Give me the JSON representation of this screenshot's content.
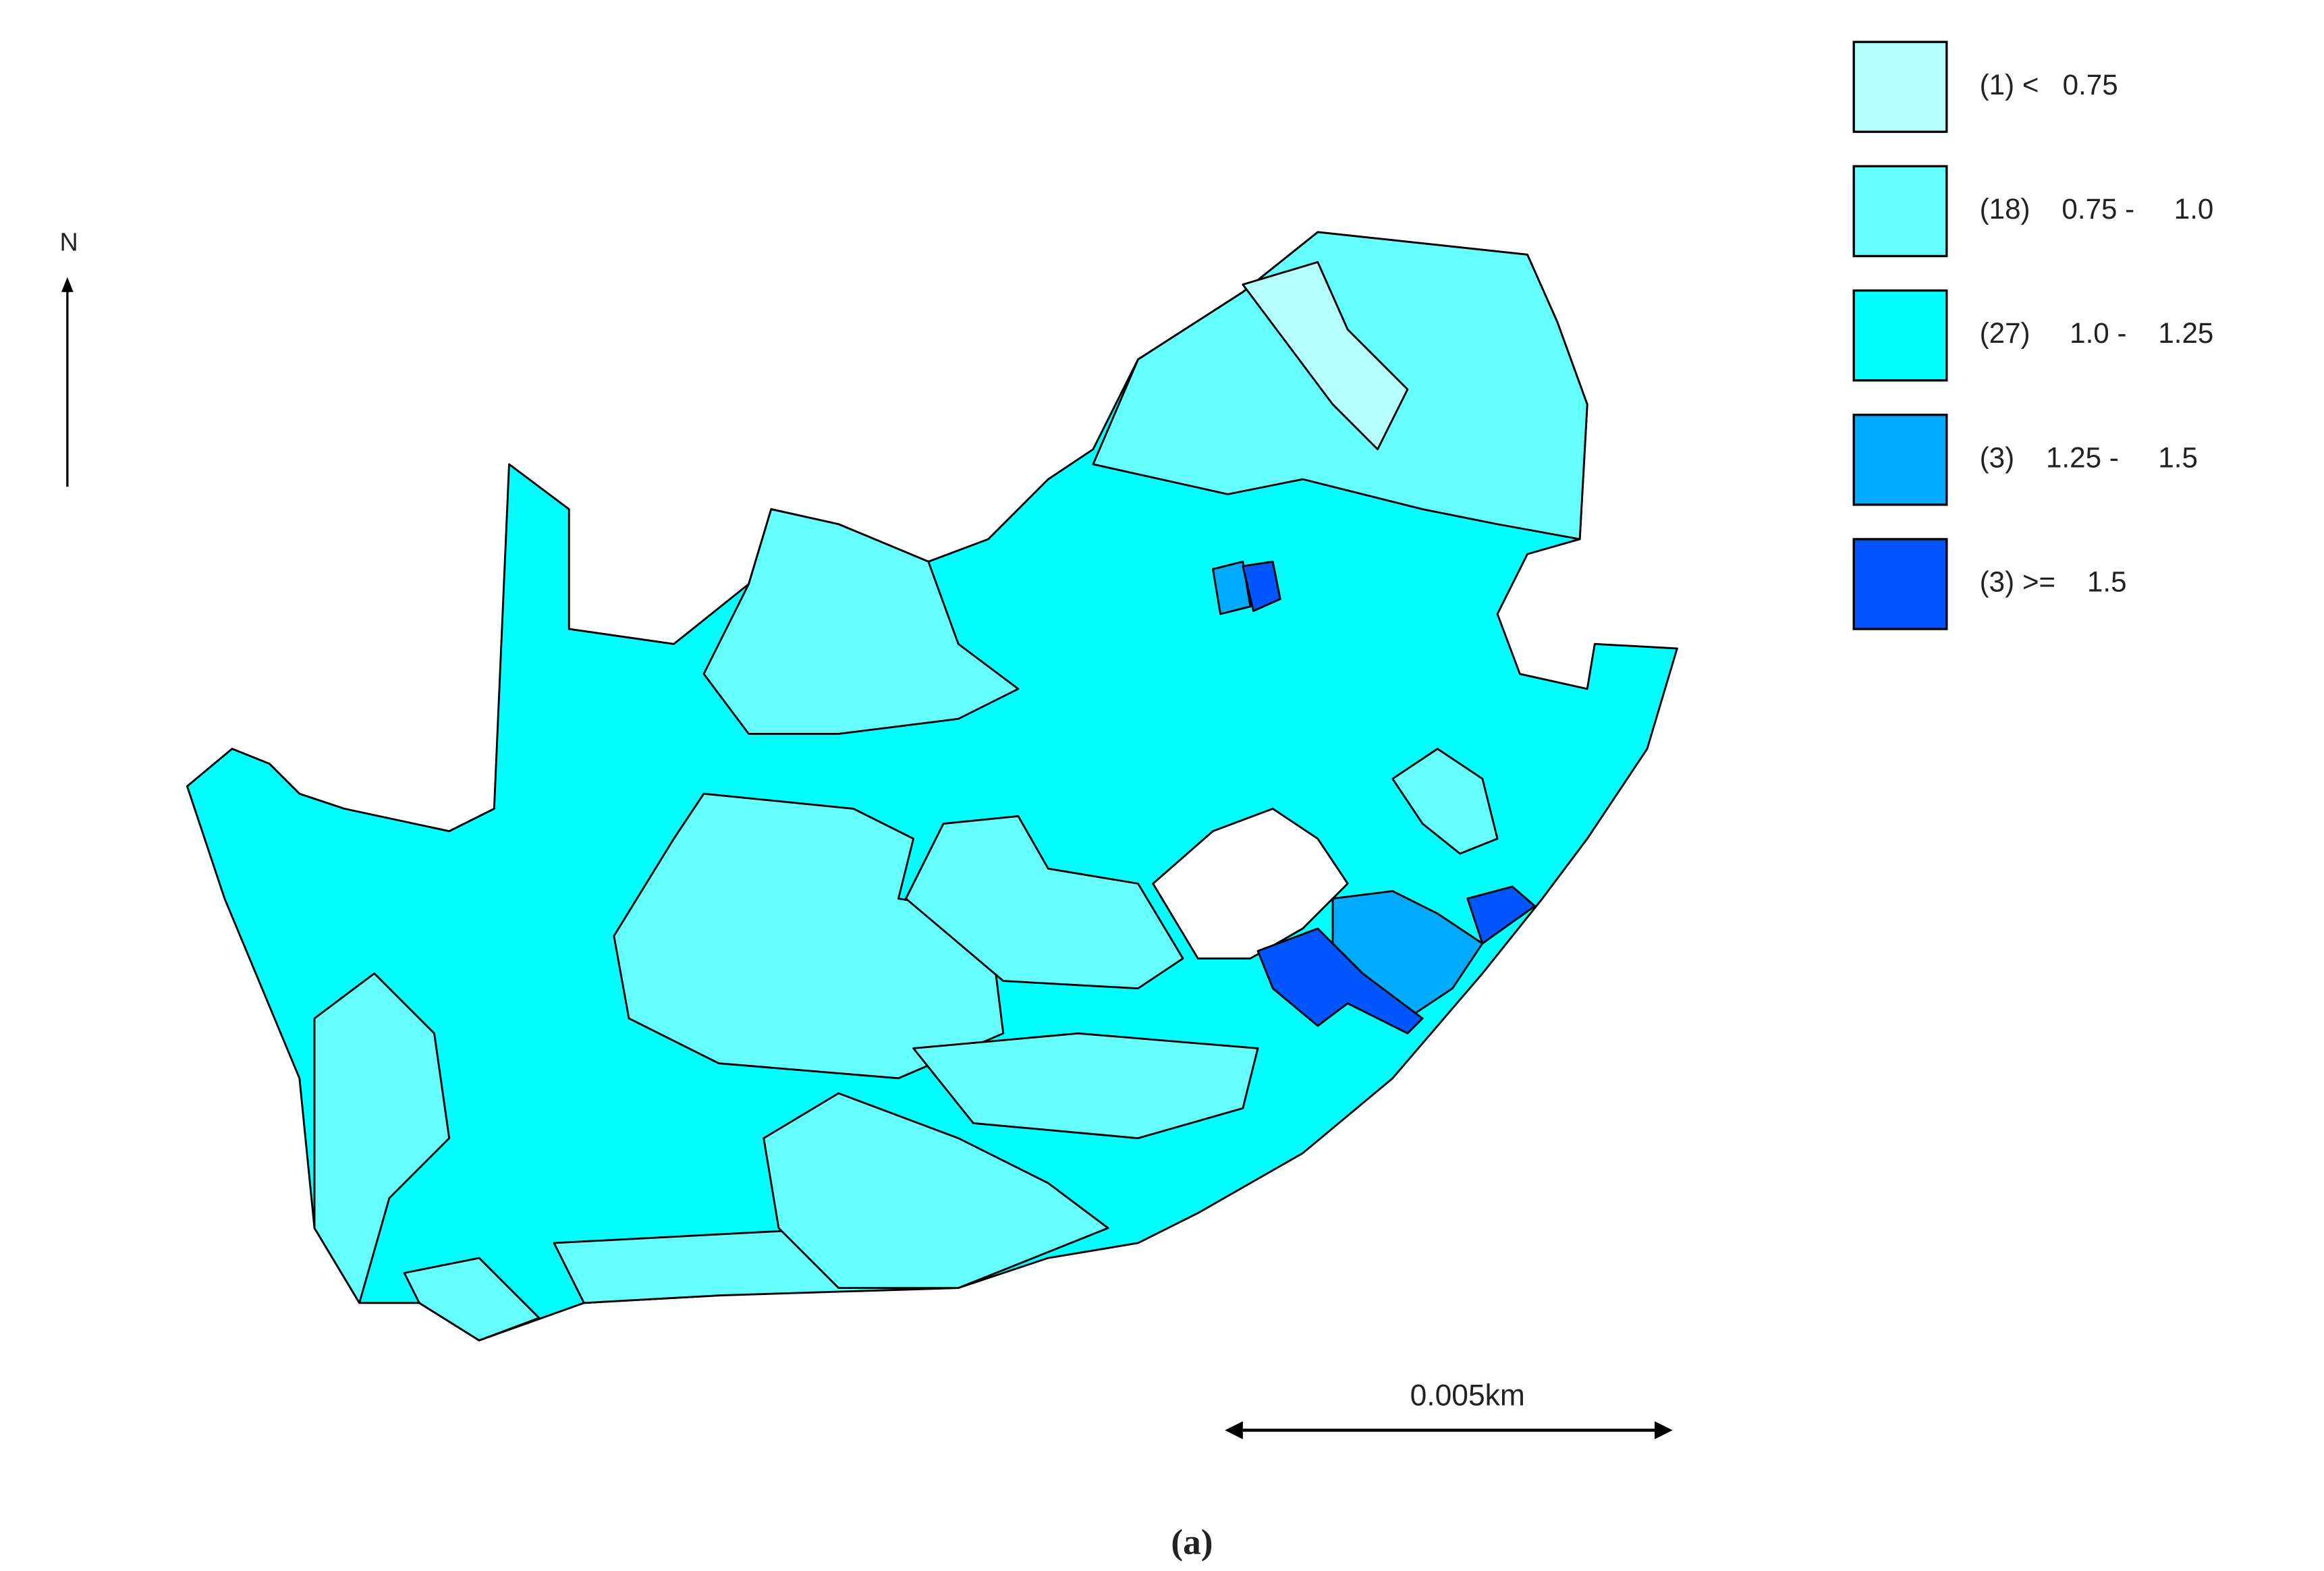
{
  "north_label": "N",
  "legend": [
    {
      "label": "(1) <   0.75",
      "color": "#b6ffff"
    },
    {
      "label": "(18)    0.75 -     1.0",
      "color": "#66ffff"
    },
    {
      "label": "(27)     1.0 -    1.25",
      "color": "#00ffff"
    },
    {
      "label": "(3)    1.25 -     1.5",
      "color": "#00aaff"
    },
    {
      "label": "(3) >=    1.5",
      "color": "#0055ff"
    }
  ],
  "scale_bar": "0.005km",
  "caption": "(a)"
}
